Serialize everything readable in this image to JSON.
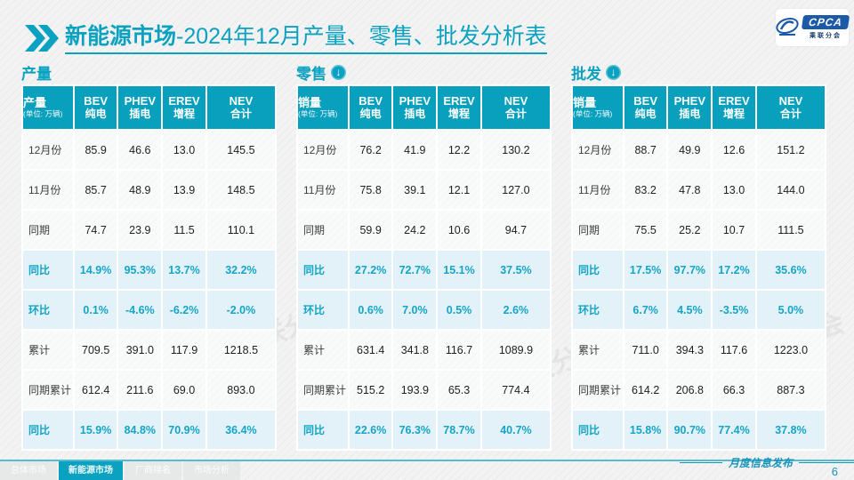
{
  "header": {
    "title_primary": "新能源市场",
    "title_secondary": "-2024年12月产量、零售、批发分析表",
    "logo_text": "CPCA",
    "logo_subtext": "乘联分会"
  },
  "watermark": "CPCA 乘联分会",
  "colors": {
    "teal": "#0aa2c0",
    "header_cell": "#08a0bd",
    "highlight_row_bg": "#e3f1f8",
    "highlight_text": "#14a6c6",
    "footer_line": "#52bdd2"
  },
  "tables": [
    {
      "section": "产量",
      "measure_label": "产量",
      "unit_note": "(单位: 万辆)",
      "columns": [
        {
          "en": "BEV",
          "cn": "纯电"
        },
        {
          "en": "PHEV",
          "cn": "插电"
        },
        {
          "en": "EREV",
          "cn": "增程"
        },
        {
          "en": "NEV",
          "cn": "合计"
        }
      ],
      "rows": [
        {
          "label": "12月份",
          "values": [
            "85.9",
            "46.6",
            "13.0",
            "145.5"
          ],
          "highlight": false
        },
        {
          "label": "11月份",
          "values": [
            "85.7",
            "48.9",
            "13.9",
            "148.5"
          ],
          "highlight": false
        },
        {
          "label": "同期",
          "values": [
            "74.7",
            "23.9",
            "11.5",
            "110.1"
          ],
          "highlight": false
        },
        {
          "label": "同比",
          "values": [
            "14.9%",
            "95.3%",
            "13.7%",
            "32.2%"
          ],
          "highlight": true
        },
        {
          "label": "环比",
          "values": [
            "0.1%",
            "-4.6%",
            "-6.2%",
            "-2.0%"
          ],
          "highlight": true
        },
        {
          "label": "累计",
          "values": [
            "709.5",
            "391.0",
            "117.9",
            "1218.5"
          ],
          "highlight": false
        },
        {
          "label": "同期累计",
          "values": [
            "612.4",
            "211.6",
            "69.0",
            "893.0"
          ],
          "highlight": false
        },
        {
          "label": "同比",
          "values": [
            "15.9%",
            "84.8%",
            "70.9%",
            "36.4%"
          ],
          "highlight": true
        }
      ]
    },
    {
      "section": "零售",
      "measure_label": "销量",
      "unit_note": "(单位: 万辆)",
      "columns": [
        {
          "en": "BEV",
          "cn": "纯电"
        },
        {
          "en": "PHEV",
          "cn": "插电"
        },
        {
          "en": "EREV",
          "cn": "增程"
        },
        {
          "en": "NEV",
          "cn": "合计"
        }
      ],
      "rows": [
        {
          "label": "12月份",
          "values": [
            "76.2",
            "41.9",
            "12.2",
            "130.2"
          ],
          "highlight": false
        },
        {
          "label": "11月份",
          "values": [
            "75.8",
            "39.1",
            "12.1",
            "127.0"
          ],
          "highlight": false
        },
        {
          "label": "同期",
          "values": [
            "59.9",
            "24.2",
            "10.6",
            "94.7"
          ],
          "highlight": false
        },
        {
          "label": "同比",
          "values": [
            "27.2%",
            "72.7%",
            "15.1%",
            "37.5%"
          ],
          "highlight": true
        },
        {
          "label": "环比",
          "values": [
            "0.6%",
            "7.0%",
            "0.5%",
            "2.6%"
          ],
          "highlight": true
        },
        {
          "label": "累计",
          "values": [
            "631.4",
            "341.8",
            "116.7",
            "1089.9"
          ],
          "highlight": false
        },
        {
          "label": "同期累计",
          "values": [
            "515.2",
            "193.9",
            "65.3",
            "774.4"
          ],
          "highlight": false
        },
        {
          "label": "同比",
          "values": [
            "22.6%",
            "76.3%",
            "78.7%",
            "40.7%"
          ],
          "highlight": true
        }
      ]
    },
    {
      "section": "批发",
      "measure_label": "销量",
      "unit_note": "(单位: 万辆)",
      "columns": [
        {
          "en": "BEV",
          "cn": "纯电"
        },
        {
          "en": "PHEV",
          "cn": "插电"
        },
        {
          "en": "EREV",
          "cn": "增程"
        },
        {
          "en": "NEV",
          "cn": "合计"
        }
      ],
      "rows": [
        {
          "label": "12月份",
          "values": [
            "88.7",
            "49.9",
            "12.6",
            "151.2"
          ],
          "highlight": false
        },
        {
          "label": "11月份",
          "values": [
            "83.2",
            "47.8",
            "13.0",
            "144.0"
          ],
          "highlight": false
        },
        {
          "label": "同期",
          "values": [
            "75.5",
            "25.2",
            "10.7",
            "111.5"
          ],
          "highlight": false
        },
        {
          "label": "同比",
          "values": [
            "17.5%",
            "97.7%",
            "17.2%",
            "35.6%"
          ],
          "highlight": true
        },
        {
          "label": "环比",
          "values": [
            "6.7%",
            "4.5%",
            "-3.5%",
            "5.0%"
          ],
          "highlight": true
        },
        {
          "label": "累计",
          "values": [
            "711.0",
            "394.3",
            "117.6",
            "1223.0"
          ],
          "highlight": false
        },
        {
          "label": "同期累计",
          "values": [
            "614.2",
            "206.8",
            "66.3",
            "887.3"
          ],
          "highlight": false
        },
        {
          "label": "同比",
          "values": [
            "15.8%",
            "90.7%",
            "77.4%",
            "37.8%"
          ],
          "highlight": true
        }
      ]
    }
  ],
  "footer": {
    "tabs": [
      {
        "label": "总体市场",
        "active": false
      },
      {
        "label": "新能源市场",
        "active": true
      },
      {
        "label": "厂商排名",
        "active": false
      },
      {
        "label": "市场分析",
        "active": false
      }
    ],
    "publish_label": "月度信息发布",
    "page_number": "6"
  },
  "chart_data": [
    {
      "type": "table",
      "title": "产量",
      "unit": "万辆",
      "columns": [
        "BEV纯电",
        "PHEV插电",
        "EREV增程",
        "NEV合计"
      ],
      "row_labels": [
        "12月份",
        "11月份",
        "同期",
        "同比",
        "环比",
        "累计",
        "同期累计",
        "同比"
      ],
      "rows": [
        [
          85.9,
          46.6,
          13.0,
          145.5
        ],
        [
          85.7,
          48.9,
          13.9,
          148.5
        ],
        [
          74.7,
          23.9,
          11.5,
          110.1
        ],
        [
          "14.9%",
          "95.3%",
          "13.7%",
          "32.2%"
        ],
        [
          "0.1%",
          "-4.6%",
          "-6.2%",
          "-2.0%"
        ],
        [
          709.5,
          391.0,
          117.9,
          1218.5
        ],
        [
          612.4,
          211.6,
          69.0,
          893.0
        ],
        [
          "15.9%",
          "84.8%",
          "70.9%",
          "36.4%"
        ]
      ]
    },
    {
      "type": "table",
      "title": "零售",
      "unit": "万辆",
      "columns": [
        "BEV纯电",
        "PHEV插电",
        "EREV增程",
        "NEV合计"
      ],
      "row_labels": [
        "12月份",
        "11月份",
        "同期",
        "同比",
        "环比",
        "累计",
        "同期累计",
        "同比"
      ],
      "rows": [
        [
          76.2,
          41.9,
          12.2,
          130.2
        ],
        [
          75.8,
          39.1,
          12.1,
          127.0
        ],
        [
          59.9,
          24.2,
          10.6,
          94.7
        ],
        [
          "27.2%",
          "72.7%",
          "15.1%",
          "37.5%"
        ],
        [
          "0.6%",
          "7.0%",
          "0.5%",
          "2.6%"
        ],
        [
          631.4,
          341.8,
          116.7,
          1089.9
        ],
        [
          515.2,
          193.9,
          65.3,
          774.4
        ],
        [
          "22.6%",
          "76.3%",
          "78.7%",
          "40.7%"
        ]
      ]
    },
    {
      "type": "table",
      "title": "批发",
      "unit": "万辆",
      "columns": [
        "BEV纯电",
        "PHEV插电",
        "EREV增程",
        "NEV合计"
      ],
      "row_labels": [
        "12月份",
        "11月份",
        "同期",
        "同比",
        "环比",
        "累计",
        "同期累计",
        "同比"
      ],
      "rows": [
        [
          88.7,
          49.9,
          12.6,
          151.2
        ],
        [
          83.2,
          47.8,
          13.0,
          144.0
        ],
        [
          75.5,
          25.2,
          10.7,
          111.5
        ],
        [
          "17.5%",
          "97.7%",
          "17.2%",
          "35.6%"
        ],
        [
          "6.7%",
          "4.5%",
          "-3.5%",
          "5.0%"
        ],
        [
          711.0,
          394.3,
          117.6,
          1223.0
        ],
        [
          614.2,
          206.8,
          66.3,
          887.3
        ],
        [
          "15.8%",
          "90.7%",
          "77.4%",
          "37.8%"
        ]
      ]
    }
  ]
}
